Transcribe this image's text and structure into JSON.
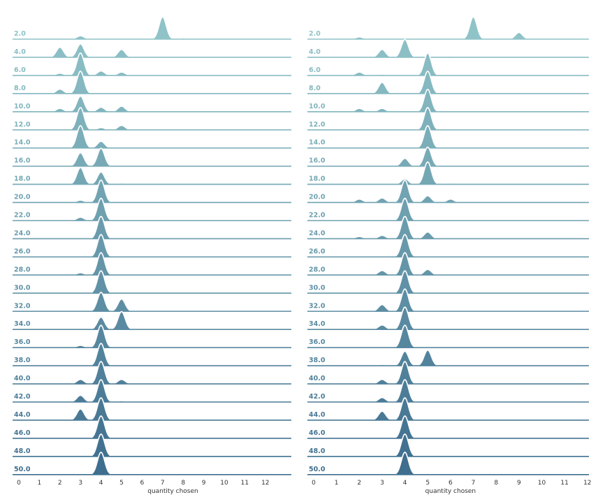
{
  "chart_data": [
    {
      "type": "ridgeline",
      "xlabel": "quantity chosen",
      "xlim": [
        0,
        13
      ],
      "xticks": [
        "0",
        "1",
        "2",
        "3",
        "4",
        "5",
        "6",
        "7",
        "8",
        "9",
        "10",
        "11",
        "12"
      ],
      "grid": false,
      "rows": [
        {
          "label": "2.0",
          "peaks": [
            [
              3,
              0.15
            ],
            [
              7,
              1.0
            ],
            [
              8,
              0.05
            ]
          ]
        },
        {
          "label": "4.0",
          "peaks": [
            [
              2,
              0.45
            ],
            [
              3,
              0.6
            ],
            [
              5,
              0.35
            ]
          ]
        },
        {
          "label": "6.0",
          "peaks": [
            [
              2,
              0.1
            ],
            [
              3,
              1.0
            ],
            [
              4,
              0.2
            ],
            [
              5,
              0.15
            ]
          ]
        },
        {
          "label": "8.0",
          "peaks": [
            [
              2,
              0.2
            ],
            [
              3,
              1.0
            ]
          ]
        },
        {
          "label": "10.0",
          "peaks": [
            [
              2,
              0.15
            ],
            [
              3,
              0.7
            ],
            [
              4,
              0.2
            ],
            [
              5,
              0.25
            ],
            [
              6,
              0.05
            ]
          ]
        },
        {
          "label": "12.0",
          "peaks": [
            [
              3,
              1.0
            ],
            [
              4,
              0.1
            ],
            [
              5,
              0.2
            ]
          ]
        },
        {
          "label": "14.0",
          "peaks": [
            [
              3,
              1.0
            ],
            [
              4,
              0.3
            ]
          ]
        },
        {
          "label": "16.0",
          "peaks": [
            [
              3,
              0.6
            ],
            [
              4,
              0.8
            ]
          ]
        },
        {
          "label": "18.0",
          "peaks": [
            [
              3,
              0.75
            ],
            [
              4,
              0.55
            ],
            [
              5,
              0.05
            ]
          ]
        },
        {
          "label": "20.0",
          "peaks": [
            [
              3,
              0.1
            ],
            [
              4,
              1.0
            ]
          ]
        },
        {
          "label": "22.0",
          "peaks": [
            [
              3,
              0.15
            ],
            [
              4,
              1.0
            ]
          ]
        },
        {
          "label": "24.0",
          "peaks": [
            [
              4,
              1.0
            ]
          ]
        },
        {
          "label": "26.0",
          "peaks": [
            [
              4,
              1.0
            ]
          ]
        },
        {
          "label": "28.0",
          "peaks": [
            [
              3,
              0.1
            ],
            [
              4,
              1.0
            ]
          ]
        },
        {
          "label": "30.0",
          "peaks": [
            [
              4,
              1.0
            ]
          ]
        },
        {
          "label": "32.0",
          "peaks": [
            [
              3,
              0.05
            ],
            [
              4,
              0.85
            ],
            [
              5,
              0.55
            ]
          ]
        },
        {
          "label": "34.0",
          "peaks": [
            [
              4,
              0.55
            ],
            [
              5,
              0.8
            ]
          ]
        },
        {
          "label": "36.0",
          "peaks": [
            [
              3,
              0.1
            ],
            [
              4,
              1.0
            ]
          ]
        },
        {
          "label": "38.0",
          "peaks": [
            [
              4,
              1.0
            ]
          ]
        },
        {
          "label": "40.0",
          "peaks": [
            [
              3,
              0.2
            ],
            [
              4,
              1.0
            ],
            [
              5,
              0.2
            ]
          ]
        },
        {
          "label": "42.0",
          "peaks": [
            [
              3,
              0.3
            ],
            [
              4,
              1.0
            ],
            [
              5,
              0.05
            ]
          ]
        },
        {
          "label": "44.0",
          "peaks": [
            [
              3,
              0.5
            ],
            [
              4,
              1.0
            ]
          ]
        },
        {
          "label": "46.0",
          "peaks": [
            [
              4,
              1.0
            ]
          ]
        },
        {
          "label": "48.0",
          "peaks": [
            [
              4,
              1.0
            ]
          ]
        },
        {
          "label": "50.0",
          "peaks": [
            [
              4,
              1.0
            ],
            [
              5,
              0.05
            ]
          ]
        }
      ]
    },
    {
      "type": "ridgeline",
      "xlabel": "quantity chosen",
      "xlim": [
        0,
        12
      ],
      "xticks": [
        "0",
        "1",
        "2",
        "3",
        "4",
        "5",
        "6",
        "7",
        "8",
        "9",
        "10",
        "11",
        "12"
      ],
      "grid": false,
      "rows": [
        {
          "label": "2.0",
          "peaks": [
            [
              2,
              0.1
            ],
            [
              7,
              1.0
            ],
            [
              9,
              0.3
            ]
          ]
        },
        {
          "label": "4.0",
          "peaks": [
            [
              3,
              0.35
            ],
            [
              4,
              0.8
            ],
            [
              6,
              0.05
            ]
          ]
        },
        {
          "label": "6.0",
          "peaks": [
            [
              2,
              0.15
            ],
            [
              3,
              0.05
            ],
            [
              5,
              1.0
            ],
            [
              10,
              0.03
            ]
          ]
        },
        {
          "label": "8.0",
          "peaks": [
            [
              3,
              0.5
            ],
            [
              5,
              1.0
            ]
          ]
        },
        {
          "label": "10.0",
          "peaks": [
            [
              2,
              0.15
            ],
            [
              3,
              0.15
            ],
            [
              5,
              1.0
            ]
          ]
        },
        {
          "label": "12.0",
          "peaks": [
            [
              5,
              1.0
            ]
          ]
        },
        {
          "label": "14.0",
          "peaks": [
            [
              5,
              1.0
            ]
          ]
        },
        {
          "label": "16.0",
          "peaks": [
            [
              4,
              0.35
            ],
            [
              5,
              0.85
            ]
          ]
        },
        {
          "label": "18.0",
          "peaks": [
            [
              4,
              0.25
            ],
            [
              5,
              1.0
            ],
            [
              6,
              0.05
            ]
          ]
        },
        {
          "label": "20.0",
          "peaks": [
            [
              2,
              0.15
            ],
            [
              3,
              0.2
            ],
            [
              4,
              1.0
            ],
            [
              5,
              0.3
            ],
            [
              6,
              0.15
            ]
          ]
        },
        {
          "label": "22.0",
          "peaks": [
            [
              4,
              1.0
            ]
          ]
        },
        {
          "label": "24.0",
          "peaks": [
            [
              2,
              0.1
            ],
            [
              3,
              0.15
            ],
            [
              4,
              1.0
            ],
            [
              5,
              0.3
            ]
          ]
        },
        {
          "label": "26.0",
          "peaks": [
            [
              4,
              1.0
            ]
          ]
        },
        {
          "label": "28.0",
          "peaks": [
            [
              3,
              0.2
            ],
            [
              4,
              1.0
            ],
            [
              5,
              0.25
            ]
          ]
        },
        {
          "label": "30.0",
          "peaks": [
            [
              4,
              1.0
            ]
          ]
        },
        {
          "label": "32.0",
          "peaks": [
            [
              3,
              0.3
            ],
            [
              4,
              1.0
            ],
            [
              5,
              0.05
            ]
          ]
        },
        {
          "label": "34.0",
          "peaks": [
            [
              3,
              0.2
            ],
            [
              4,
              1.0
            ]
          ]
        },
        {
          "label": "36.0",
          "peaks": [
            [
              4,
              1.0
            ]
          ]
        },
        {
          "label": "38.0",
          "peaks": [
            [
              3,
              0.05
            ],
            [
              4,
              0.65
            ],
            [
              5,
              0.7
            ]
          ]
        },
        {
          "label": "40.0",
          "peaks": [
            [
              3,
              0.2
            ],
            [
              4,
              1.0
            ]
          ]
        },
        {
          "label": "42.0",
          "peaks": [
            [
              3,
              0.2
            ],
            [
              4,
              1.0
            ]
          ]
        },
        {
          "label": "44.0",
          "peaks": [
            [
              3,
              0.4
            ],
            [
              4,
              1.0
            ]
          ]
        },
        {
          "label": "46.0",
          "peaks": [
            [
              4,
              1.0
            ]
          ]
        },
        {
          "label": "48.0",
          "peaks": [
            [
              4,
              1.0
            ]
          ]
        },
        {
          "label": "50.0",
          "peaks": [
            [
              4,
              1.0
            ]
          ]
        }
      ]
    }
  ],
  "colors": {
    "first_row": "#8fc3c7",
    "last_row": "#3f6e8e"
  }
}
